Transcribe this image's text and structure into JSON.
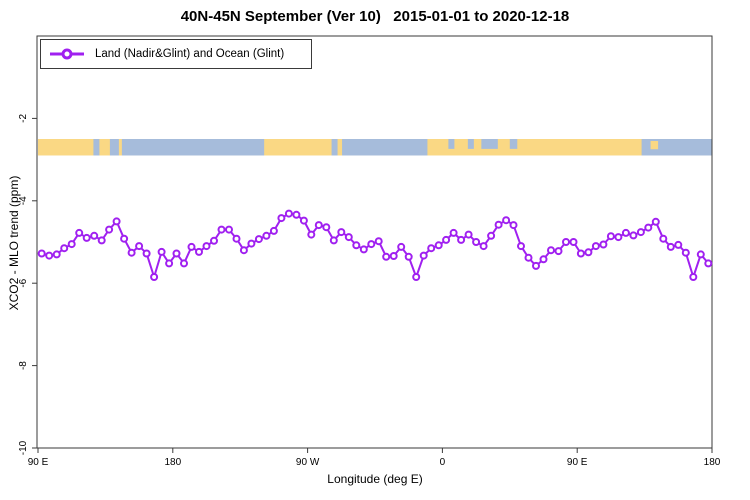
{
  "title": "40N-45N September (Ver 10)   2015-01-01 to 2020-12-18",
  "legend": {
    "label": "Land (Nadir&Glint) and Ocean (Glint)"
  },
  "colors": {
    "series": "#A020F0",
    "marker_fill": "#ffffff",
    "land": "#FAD884",
    "ocean": "#A6BCDB",
    "axis": "#3a3a3a",
    "text": "#000000",
    "background": "#ffffff"
  },
  "chart_data": {
    "type": "line",
    "title": "40N-45N September (Ver 10)   2015-01-01 to 2020-12-18",
    "xlabel": "Longitude (deg E)",
    "ylabel": "XCO2 - MLO trend (ppm)",
    "xlim": [
      90,
      540
    ],
    "ylim": [
      -10,
      0
    ],
    "grid": false,
    "legend_position": "top-left",
    "x_axis_note": "degrees east continuing past 180 (wraps: 270=90W, 360=0, 450=90E, 540=180)",
    "x_ticks": [
      {
        "value": 90,
        "label": "90 E"
      },
      {
        "value": 180,
        "label": "180"
      },
      {
        "value": 270,
        "label": "90 W"
      },
      {
        "value": 360,
        "label": "0"
      },
      {
        "value": 450,
        "label": "90 E"
      },
      {
        "value": 540,
        "label": "180"
      }
    ],
    "y_ticks": [
      {
        "value": -2,
        "label": "-2"
      },
      {
        "value": -4,
        "label": "-4"
      },
      {
        "value": -6,
        "label": "-6"
      },
      {
        "value": -8,
        "label": "-8"
      },
      {
        "value": -10,
        "label": "-10"
      }
    ],
    "series": [
      {
        "name": "Land (Nadir&Glint) and Ocean (Glint)",
        "color": "#A020F0",
        "marker": "open-circle",
        "x": [
          92.5,
          97.5,
          102.5,
          107.5,
          112.5,
          117.5,
          122.5,
          127.5,
          132.5,
          137.5,
          142.5,
          147.5,
          152.5,
          157.5,
          162.5,
          167.5,
          172.5,
          177.5,
          182.5,
          187.5,
          192.5,
          197.5,
          202.5,
          207.5,
          212.5,
          217.5,
          222.5,
          227.5,
          232.5,
          237.5,
          242.5,
          247.5,
          252.5,
          257.5,
          262.5,
          267.5,
          272.5,
          277.5,
          282.5,
          287.5,
          292.5,
          297.5,
          302.5,
          307.5,
          312.5,
          317.5,
          322.5,
          327.5,
          332.5,
          337.5,
          342.5,
          347.5,
          352.5,
          357.5,
          362.5,
          367.5,
          372.5,
          377.5,
          382.5,
          387.5,
          392.5,
          397.5,
          402.5,
          407.5,
          412.5,
          417.5,
          422.5,
          427.5,
          432.5,
          437.5,
          442.5,
          447.5,
          452.5,
          457.5,
          462.5,
          467.5,
          472.5,
          477.5,
          482.5,
          487.5,
          492.5,
          497.5,
          502.5,
          507.5,
          512.5,
          517.5,
          522.5,
          527.5,
          532.5,
          537.5
        ],
        "y": [
          -5.28,
          -5.33,
          -5.3,
          -5.15,
          -5.05,
          -4.78,
          -4.9,
          -4.85,
          -4.96,
          -4.7,
          -4.5,
          -4.92,
          -5.26,
          -5.1,
          -5.28,
          -5.85,
          -5.24,
          -5.52,
          -5.28,
          -5.52,
          -5.12,
          -5.24,
          -5.1,
          -4.97,
          -4.7,
          -4.7,
          -4.92,
          -5.2,
          -5.04,
          -4.93,
          -4.85,
          -4.73,
          -4.42,
          -4.31,
          -4.34,
          -4.48,
          -4.82,
          -4.59,
          -4.64,
          -4.96,
          -4.76,
          -4.88,
          -5.08,
          -5.18,
          -5.05,
          -4.98,
          -5.36,
          -5.34,
          -5.12,
          -5.36,
          -5.85,
          -5.33,
          -5.15,
          -5.08,
          -4.95,
          -4.78,
          -4.95,
          -4.82,
          -5.0,
          -5.1,
          -4.85,
          -4.58,
          -4.47,
          -4.59,
          -5.1,
          -5.38,
          -5.58,
          -5.42,
          -5.2,
          -5.22,
          -5.0,
          -5.0,
          -5.28,
          -5.25,
          -5.1,
          -5.06,
          -4.86,
          -4.88,
          -4.78,
          -4.84,
          -4.76,
          -4.65,
          -4.51,
          -4.92,
          -5.12,
          -5.07,
          -5.26,
          -5.85,
          -5.3,
          -5.52
        ]
      }
    ],
    "map_strip": {
      "description": "land/ocean strip for 40N-45N latitude band",
      "value_top": -2.5,
      "value_bottom": -2.9,
      "land_color": "#FAD884",
      "ocean_color": "#A6BCDB",
      "ocean_segments": [
        [
          127,
          131
        ],
        [
          138,
          144
        ],
        [
          146,
          241
        ],
        [
          286,
          290
        ],
        [
          293,
          350
        ],
        [
          364,
          368
        ],
        [
          377,
          381
        ],
        [
          386,
          397
        ],
        [
          405,
          410
        ],
        [
          493,
          540
        ]
      ],
      "partial_ocean_segments": [
        [
          364,
          368
        ],
        [
          377,
          381
        ],
        [
          386,
          397
        ],
        [
          405,
          410
        ]
      ],
      "land_patches": [
        [
          499,
          504
        ]
      ]
    }
  }
}
